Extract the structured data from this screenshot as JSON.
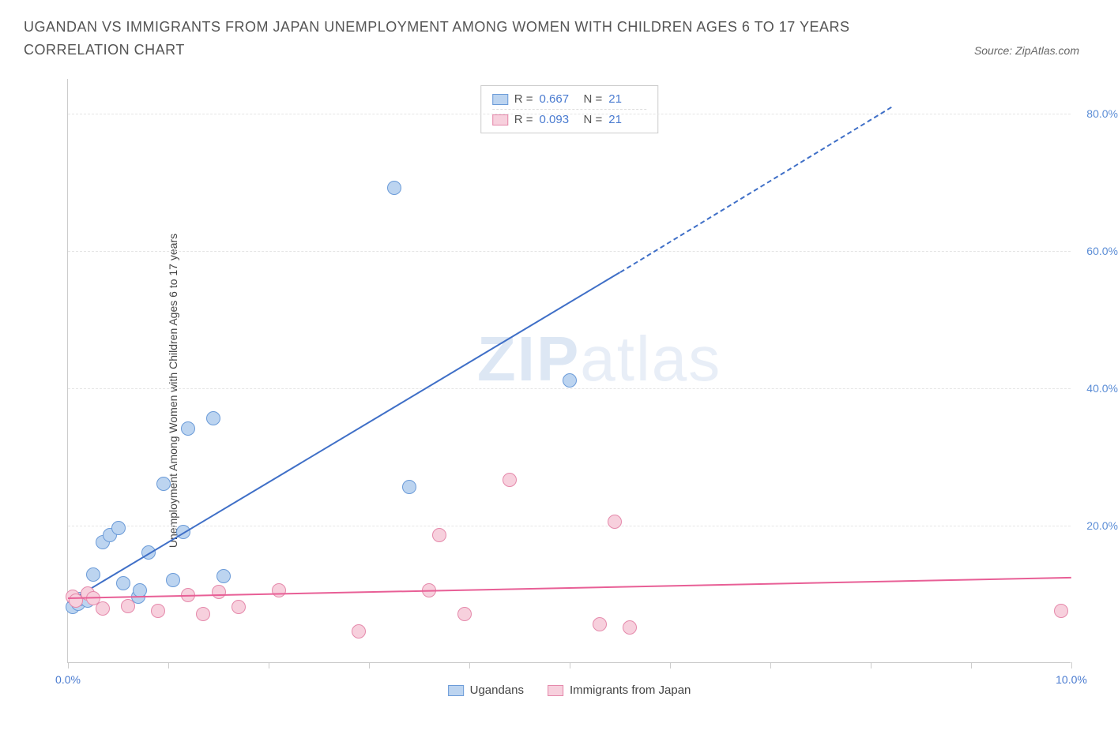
{
  "title": "UGANDAN VS IMMIGRANTS FROM JAPAN UNEMPLOYMENT AMONG WOMEN WITH CHILDREN AGES 6 TO 17 YEARS CORRELATION CHART",
  "source_label": "Source: ZipAtlas.com",
  "watermark_bold": "ZIP",
  "watermark_light": "atlas",
  "y_axis_label": "Unemployment Among Women with Children Ages 6 to 17 years",
  "chart": {
    "type": "scatter",
    "background_color": "#ffffff",
    "grid_color": "#e5e5e5",
    "axis_color": "#cccccc",
    "xlim": [
      0,
      10
    ],
    "ylim": [
      0,
      85
    ],
    "x_ticks": [
      0,
      1,
      2,
      3,
      4,
      5,
      6,
      7,
      8,
      9,
      10
    ],
    "x_tick_labels": {
      "0": "0.0%",
      "10": "10.0%"
    },
    "y_grid": [
      20,
      40,
      60,
      80
    ],
    "y_tick_labels": {
      "20": "20.0%",
      "40": "40.0%",
      "60": "60.0%",
      "80": "80.0%"
    },
    "x_label_color": "#4a7bd0",
    "y_label_color_a": "#5b8dd6",
    "y_label_color_b": "#e87ba5"
  },
  "series": [
    {
      "key": "ugandans",
      "label": "Ugandans",
      "r": "0.667",
      "n": "21",
      "fill": "#bcd4f0",
      "stroke": "#6b9bd8",
      "line_color": "#3f6fc7",
      "points": [
        {
          "x": 0.05,
          "y": 8.0
        },
        {
          "x": 0.1,
          "y": 8.5
        },
        {
          "x": 0.12,
          "y": 9.2
        },
        {
          "x": 0.2,
          "y": 9.0
        },
        {
          "x": 0.25,
          "y": 12.8
        },
        {
          "x": 0.35,
          "y": 17.5
        },
        {
          "x": 0.42,
          "y": 18.5
        },
        {
          "x": 0.5,
          "y": 19.5
        },
        {
          "x": 0.55,
          "y": 11.5
        },
        {
          "x": 0.7,
          "y": 9.5
        },
        {
          "x": 0.72,
          "y": 10.5
        },
        {
          "x": 0.8,
          "y": 16.0
        },
        {
          "x": 0.95,
          "y": 26.0
        },
        {
          "x": 1.05,
          "y": 12.0
        },
        {
          "x": 1.15,
          "y": 19.0
        },
        {
          "x": 1.2,
          "y": 34.0
        },
        {
          "x": 1.45,
          "y": 35.5
        },
        {
          "x": 1.55,
          "y": 12.5
        },
        {
          "x": 3.25,
          "y": 69.0
        },
        {
          "x": 3.4,
          "y": 25.5
        },
        {
          "x": 5.0,
          "y": 41.0
        }
      ],
      "trend": {
        "x1": 0,
        "y1": 9.0,
        "x2": 5.5,
        "y2": 57.0,
        "dash_x2": 8.2,
        "dash_y2": 81.0
      }
    },
    {
      "key": "japan",
      "label": "Immigrants from Japan",
      "r": "0.093",
      "n": "21",
      "fill": "#f7d0dd",
      "stroke": "#e589ab",
      "line_color": "#e85f96",
      "points": [
        {
          "x": 0.05,
          "y": 9.5
        },
        {
          "x": 0.08,
          "y": 9.0
        },
        {
          "x": 0.2,
          "y": 10.0
        },
        {
          "x": 0.25,
          "y": 9.3
        },
        {
          "x": 0.35,
          "y": 7.8
        },
        {
          "x": 0.6,
          "y": 8.2
        },
        {
          "x": 0.9,
          "y": 7.5
        },
        {
          "x": 1.2,
          "y": 9.8
        },
        {
          "x": 1.35,
          "y": 7.0
        },
        {
          "x": 1.5,
          "y": 10.2
        },
        {
          "x": 1.7,
          "y": 8.0
        },
        {
          "x": 2.1,
          "y": 10.5
        },
        {
          "x": 2.9,
          "y": 4.5
        },
        {
          "x": 3.6,
          "y": 10.5
        },
        {
          "x": 3.7,
          "y": 18.5
        },
        {
          "x": 3.95,
          "y": 7.0
        },
        {
          "x": 4.4,
          "y": 26.5
        },
        {
          "x": 5.3,
          "y": 5.5
        },
        {
          "x": 5.45,
          "y": 20.5
        },
        {
          "x": 5.6,
          "y": 5.0
        },
        {
          "x": 9.9,
          "y": 7.5
        }
      ],
      "trend": {
        "x1": 0,
        "y1": 9.5,
        "x2": 10,
        "y2": 12.5
      }
    }
  ],
  "legend_box": {
    "r_label": "R =",
    "n_label": "N ="
  }
}
